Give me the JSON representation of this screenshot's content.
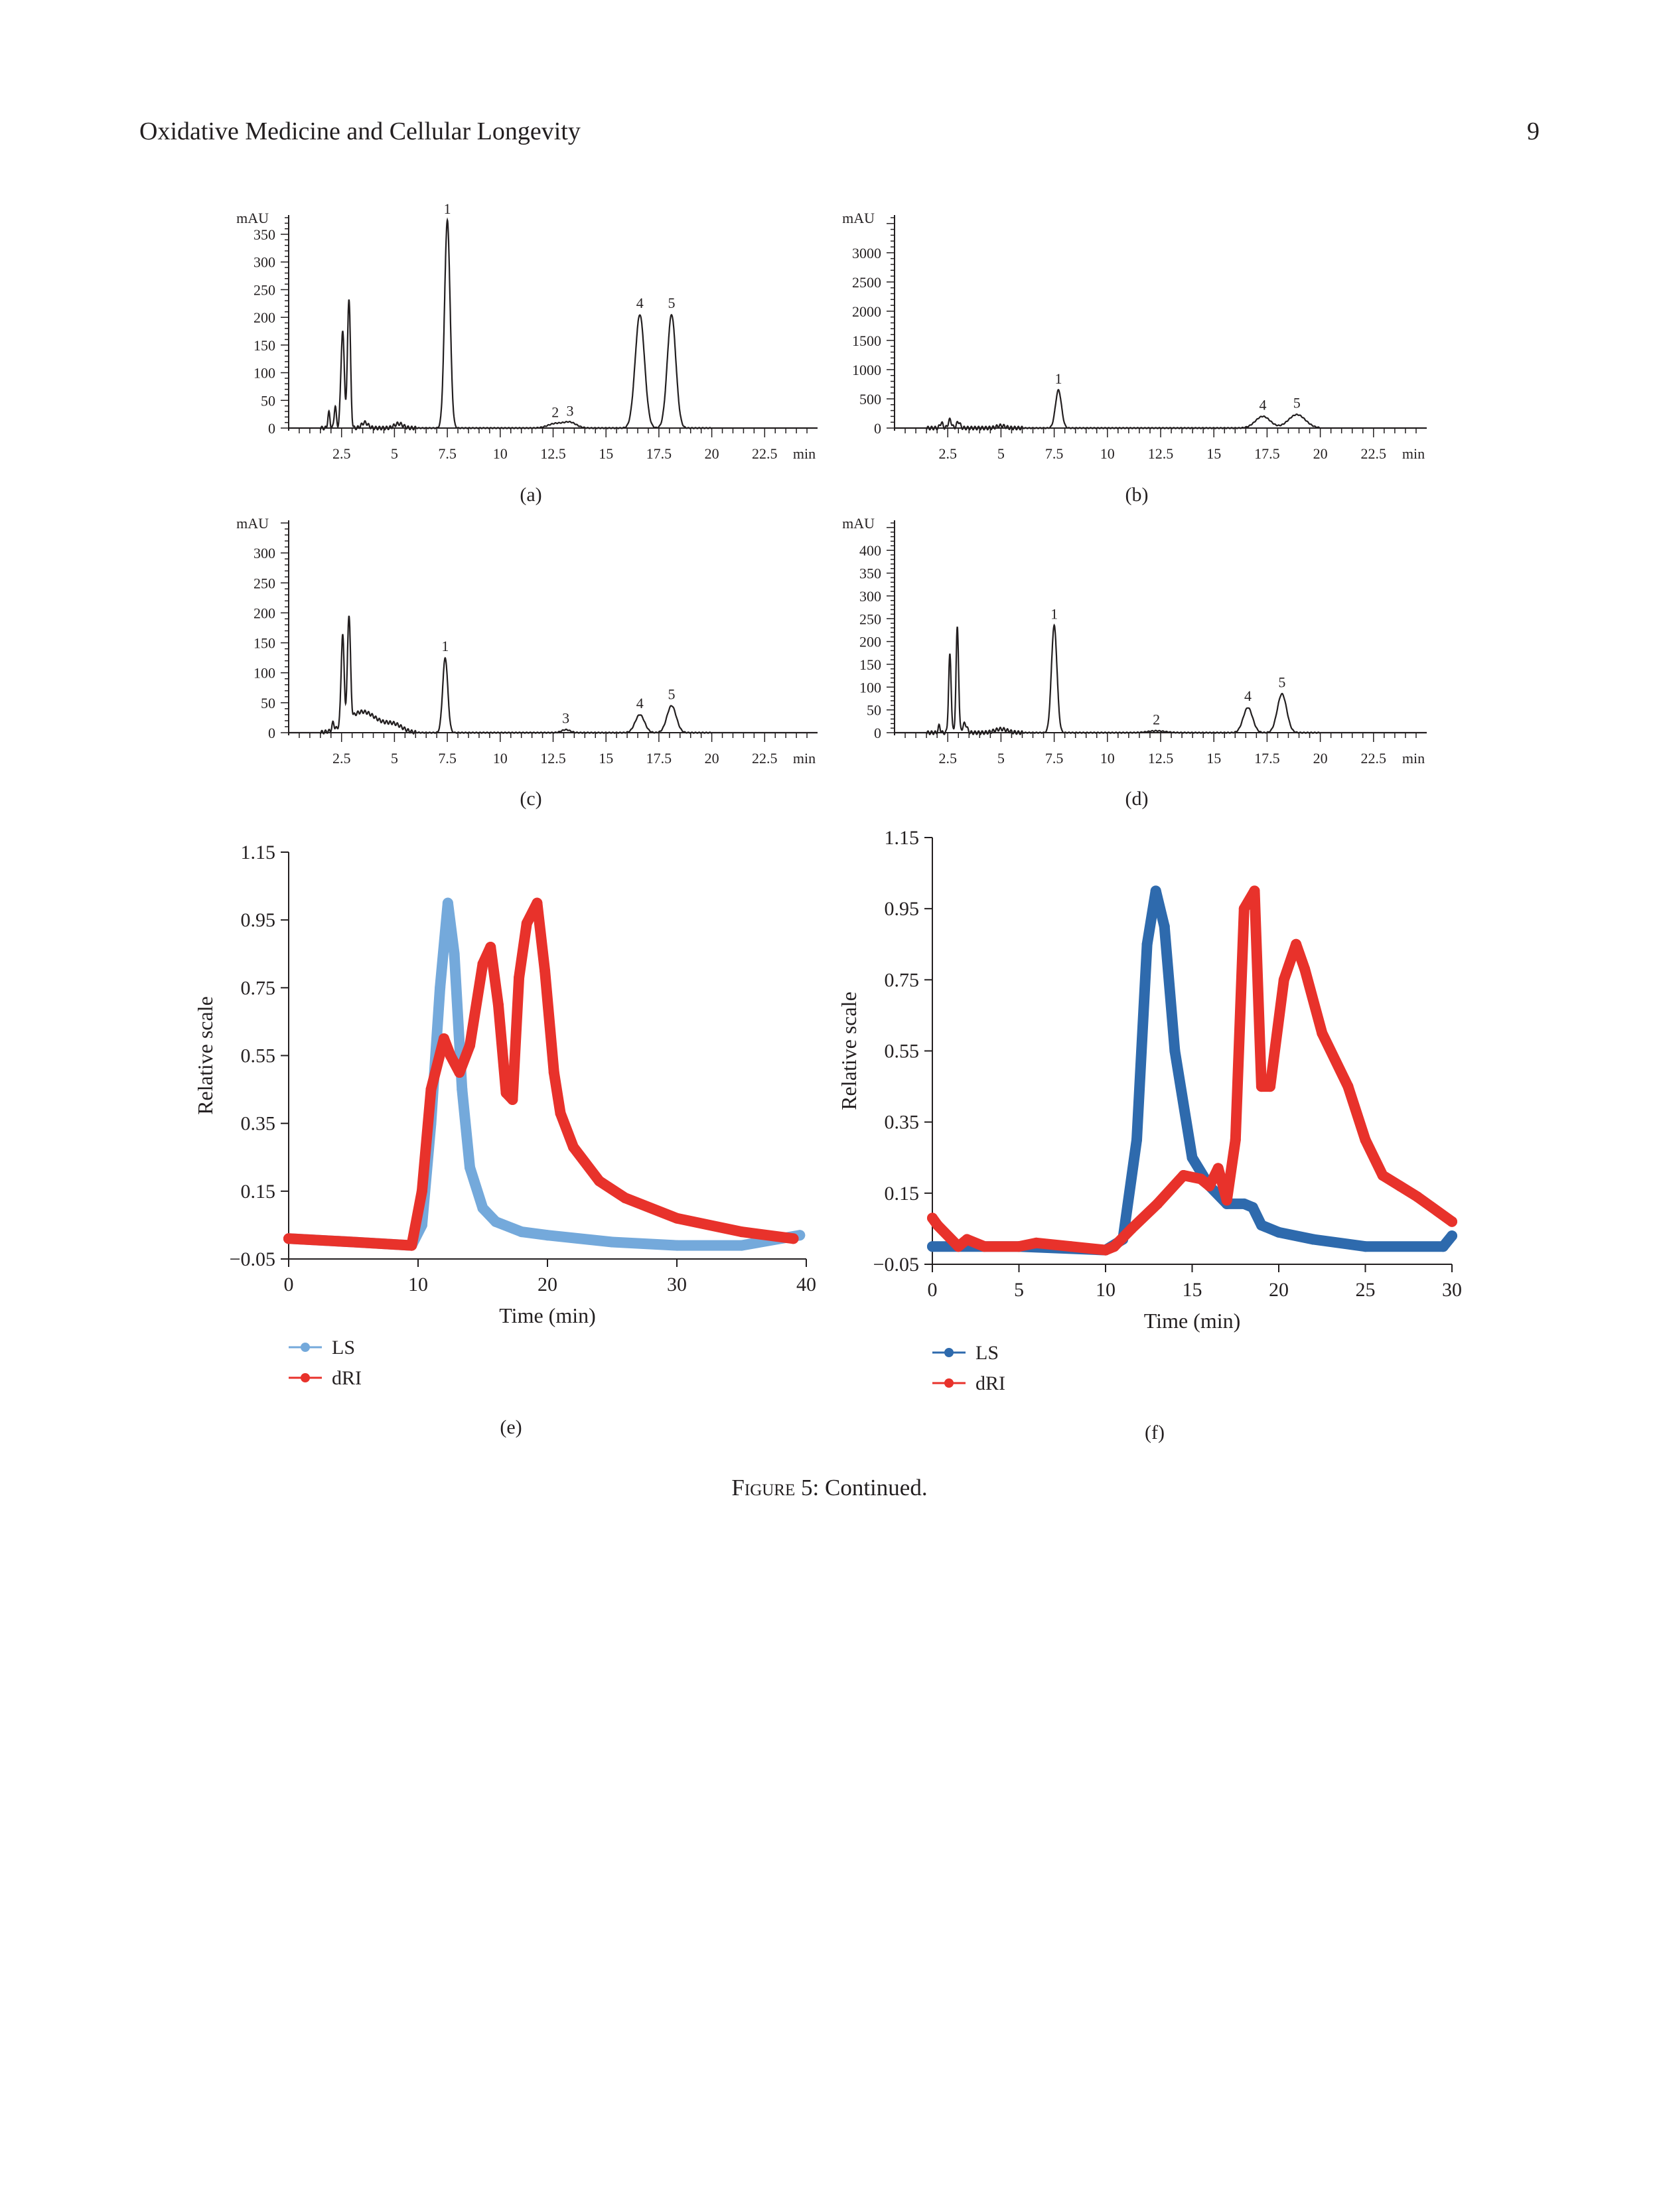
{
  "header": {
    "journal": "Oxidative Medicine and Cellular Longevity",
    "page_number": "9"
  },
  "caption": {
    "figure_label": "Figure 5",
    "text": ": Continued."
  },
  "chart_data": [
    {
      "panel": "(a)",
      "type": "line",
      "xlabel": "min",
      "ylabel": "mAU",
      "xlim": [
        0,
        25
      ],
      "ylim": [
        0,
        380
      ],
      "xticks": [
        2.5,
        5,
        7.5,
        10,
        12.5,
        15,
        17.5,
        20,
        22.5
      ],
      "xtick_labels": [
        "2.5",
        "5",
        "7.5",
        "10",
        "12.5",
        "15",
        "17.5",
        "20",
        "22.5"
      ],
      "yticks": [
        0,
        50,
        100,
        150,
        200,
        250,
        300,
        350
      ],
      "ytick_labels": [
        "0",
        "50",
        "100",
        "150",
        "200",
        "250",
        "300",
        "350"
      ],
      "peaks": [
        {
          "label": "",
          "x": 1.9,
          "y": 28,
          "w": 0.05
        },
        {
          "label": "",
          "x": 2.2,
          "y": 40,
          "w": 0.05
        },
        {
          "label": "",
          "x": 2.55,
          "y": 175,
          "w": 0.08
        },
        {
          "label": "",
          "x": 2.85,
          "y": 235,
          "w": 0.07
        },
        {
          "label": "",
          "x": 3.6,
          "y": 10,
          "w": 0.15
        },
        {
          "label": "",
          "x": 5.2,
          "y": 8,
          "w": 0.2
        },
        {
          "label": "1",
          "x": 7.5,
          "y": 375,
          "w": 0.13
        },
        {
          "label": "2",
          "x": 12.6,
          "y": 8,
          "w": 0.35
        },
        {
          "label": "3",
          "x": 13.3,
          "y": 10,
          "w": 0.3
        },
        {
          "label": "4",
          "x": 16.6,
          "y": 205,
          "w": 0.22
        },
        {
          "label": "5",
          "x": 18.1,
          "y": 205,
          "w": 0.2
        }
      ]
    },
    {
      "panel": "(b)",
      "type": "line",
      "xlabel": "min",
      "ylabel": "mAU",
      "xlim": [
        0,
        25
      ],
      "ylim": [
        0,
        3600
      ],
      "xticks": [
        2.5,
        5,
        7.5,
        10,
        12.5,
        15,
        17.5,
        20,
        22.5
      ],
      "xtick_labels": [
        "2.5",
        "5",
        "7.5",
        "10",
        "12.5",
        "15",
        "17.5",
        "20",
        "22.5"
      ],
      "yticks": [
        0,
        500,
        1000,
        1500,
        2000,
        2500,
        3000
      ],
      "ytick_labels": [
        "0",
        "500",
        "1000",
        "1500",
        "2000",
        "2500",
        "3000"
      ],
      "peaks": [
        {
          "label": "",
          "x": 2.2,
          "y": 90,
          "w": 0.07
        },
        {
          "label": "",
          "x": 2.6,
          "y": 140,
          "w": 0.08
        },
        {
          "label": "",
          "x": 3.0,
          "y": 110,
          "w": 0.08
        },
        {
          "label": "",
          "x": 5.0,
          "y": 40,
          "w": 0.2
        },
        {
          "label": "1",
          "x": 7.7,
          "y": 650,
          "w": 0.14
        },
        {
          "label": "4",
          "x": 17.3,
          "y": 200,
          "w": 0.35
        },
        {
          "label": "5",
          "x": 18.9,
          "y": 230,
          "w": 0.4
        }
      ]
    },
    {
      "panel": "(c)",
      "type": "line",
      "xlabel": "min",
      "ylabel": "mAU",
      "xlim": [
        0,
        25
      ],
      "ylim": [
        0,
        350
      ],
      "xticks": [
        2.5,
        5,
        7.5,
        10,
        12.5,
        15,
        17.5,
        20,
        22.5
      ],
      "xtick_labels": [
        "2.5",
        "5",
        "7.5",
        "10",
        "12.5",
        "15",
        "17.5",
        "20",
        "22.5"
      ],
      "yticks": [
        0,
        50,
        100,
        150,
        200,
        250,
        300
      ],
      "ytick_labels": [
        "0",
        "50",
        "100",
        "150",
        "200",
        "250",
        "300"
      ],
      "peaks": [
        {
          "label": "",
          "x": 2.1,
          "y": 12,
          "w": 0.05
        },
        {
          "label": "",
          "x": 2.55,
          "y": 150,
          "w": 0.07
        },
        {
          "label": "",
          "x": 2.85,
          "y": 175,
          "w": 0.07
        },
        {
          "label": "",
          "x": 3.5,
          "y": 35,
          "w": 0.7
        },
        {
          "label": "",
          "x": 5.0,
          "y": 12,
          "w": 0.4
        },
        {
          "label": "1",
          "x": 7.4,
          "y": 125,
          "w": 0.12
        },
        {
          "label": "3",
          "x": 13.1,
          "y": 5,
          "w": 0.2
        },
        {
          "label": "4",
          "x": 16.6,
          "y": 30,
          "w": 0.22
        },
        {
          "label": "5",
          "x": 18.1,
          "y": 45,
          "w": 0.22
        }
      ]
    },
    {
      "panel": "(d)",
      "type": "line",
      "xlabel": "min",
      "ylabel": "mAU",
      "xlim": [
        0,
        25
      ],
      "ylim": [
        0,
        460
      ],
      "xticks": [
        2.5,
        5,
        7.5,
        10,
        12.5,
        15,
        17.5,
        20,
        22.5
      ],
      "xtick_labels": [
        "2.5",
        "5",
        "7.5",
        "10",
        "12.5",
        "15",
        "17.5",
        "20",
        "22.5"
      ],
      "yticks": [
        0,
        50,
        100,
        150,
        200,
        250,
        300,
        350,
        400
      ],
      "ytick_labels": [
        "0",
        "50",
        "100",
        "150",
        "200",
        "250",
        "300",
        "350",
        "400"
      ],
      "peaks": [
        {
          "label": "",
          "x": 2.1,
          "y": 15,
          "w": 0.05
        },
        {
          "label": "",
          "x": 2.6,
          "y": 170,
          "w": 0.06
        },
        {
          "label": "",
          "x": 2.95,
          "y": 230,
          "w": 0.06
        },
        {
          "label": "",
          "x": 3.3,
          "y": 20,
          "w": 0.1
        },
        {
          "label": "",
          "x": 5.0,
          "y": 8,
          "w": 0.3
        },
        {
          "label": "1",
          "x": 7.5,
          "y": 235,
          "w": 0.13
        },
        {
          "label": "2",
          "x": 12.3,
          "y": 4,
          "w": 0.4
        },
        {
          "label": "4",
          "x": 16.6,
          "y": 55,
          "w": 0.22
        },
        {
          "label": "5",
          "x": 18.2,
          "y": 85,
          "w": 0.22
        }
      ]
    },
    {
      "panel": "(e)",
      "type": "line",
      "xlabel": "Time (min)",
      "ylabel": "Relative scale",
      "xlim": [
        0,
        40
      ],
      "ylim": [
        -0.05,
        1.15
      ],
      "xticks": [
        0,
        10,
        20,
        30,
        40
      ],
      "xtick_labels": [
        "0",
        "10",
        "20",
        "30",
        "40"
      ],
      "yticks": [
        -0.05,
        0.15,
        0.35,
        0.55,
        0.75,
        0.95,
        1.15
      ],
      "ytick_labels": [
        "−0.05",
        "0.15",
        "0.35",
        "0.55",
        "0.75",
        "0.95",
        "1.15"
      ],
      "series": [
        {
          "name": "LS",
          "color": "#74a9db",
          "x": [
            0,
            5,
            9.5,
            10.3,
            11,
            11.7,
            12.3,
            12.8,
            13.4,
            14,
            15,
            16,
            18,
            20,
            25,
            30,
            35,
            39.5
          ],
          "y": [
            0.01,
            0.0,
            -0.01,
            0.05,
            0.35,
            0.75,
            1.0,
            0.85,
            0.45,
            0.22,
            0.1,
            0.06,
            0.03,
            0.02,
            0.0,
            -0.01,
            -0.01,
            0.02
          ]
        },
        {
          "name": "dRI",
          "color": "#e8322b",
          "x": [
            0,
            5,
            9.5,
            10.3,
            11,
            12,
            12.5,
            13.2,
            14,
            15,
            15.6,
            16.2,
            16.8,
            17.3,
            17.8,
            18.4,
            19.2,
            19.8,
            20.5,
            21,
            22,
            24,
            26,
            30,
            35,
            39
          ],
          "y": [
            0.01,
            0.0,
            -0.01,
            0.15,
            0.45,
            0.6,
            0.55,
            0.5,
            0.58,
            0.82,
            0.87,
            0.7,
            0.44,
            0.42,
            0.78,
            0.94,
            1.0,
            0.8,
            0.5,
            0.38,
            0.28,
            0.18,
            0.13,
            0.07,
            0.03,
            0.01
          ]
        }
      ],
      "legend": [
        "LS",
        "dRI"
      ]
    },
    {
      "panel": "(f)",
      "type": "line",
      "xlabel": "Time (min)",
      "ylabel": "Relative scale",
      "xlim": [
        0,
        30
      ],
      "ylim": [
        -0.05,
        1.15
      ],
      "xticks": [
        0,
        5,
        10,
        15,
        20,
        25,
        30
      ],
      "xtick_labels": [
        "0",
        "5",
        "10",
        "15",
        "20",
        "25",
        "30"
      ],
      "yticks": [
        -0.05,
        0.15,
        0.35,
        0.55,
        0.75,
        0.95,
        1.15
      ],
      "ytick_labels": [
        "−0.05",
        "0.15",
        "0.35",
        "0.55",
        "0.75",
        "0.95",
        "1.15"
      ],
      "series": [
        {
          "name": "LS",
          "color": "#2e6aad",
          "x": [
            0,
            5,
            10,
            11,
            11.8,
            12.4,
            12.9,
            13.4,
            14,
            15,
            16,
            17,
            18,
            18.5,
            19,
            20,
            22,
            25,
            29.5,
            30
          ],
          "y": [
            0.0,
            0.0,
            -0.01,
            0.02,
            0.3,
            0.85,
            1.0,
            0.9,
            0.55,
            0.25,
            0.17,
            0.12,
            0.12,
            0.11,
            0.06,
            0.04,
            0.02,
            0.0,
            0.0,
            0.03
          ]
        },
        {
          "name": "dRI",
          "color": "#e8322b",
          "x": [
            0,
            0.3,
            1.5,
            2,
            3,
            5,
            6,
            8,
            10,
            10.5,
            11.5,
            13,
            14.5,
            15.5,
            16,
            16.5,
            17,
            17.5,
            18,
            18.6,
            19,
            19.5,
            20.3,
            21,
            21.5,
            22.5,
            24,
            25,
            26,
            27,
            28,
            30
          ],
          "y": [
            0.08,
            0.06,
            0.0,
            0.02,
            0.0,
            0.0,
            0.01,
            0.0,
            -0.01,
            0.0,
            0.05,
            0.12,
            0.2,
            0.19,
            0.17,
            0.22,
            0.13,
            0.3,
            0.95,
            1.0,
            0.45,
            0.45,
            0.75,
            0.85,
            0.78,
            0.6,
            0.45,
            0.3,
            0.2,
            0.17,
            0.14,
            0.07
          ]
        }
      ],
      "legend": [
        "LS",
        "dRI"
      ]
    }
  ]
}
